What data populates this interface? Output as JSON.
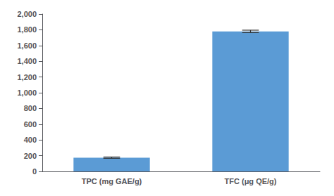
{
  "chart_data": {
    "type": "bar",
    "categories": [
      "TPC (mg GAE/g)",
      "TFC (μg QE/g)"
    ],
    "values": [
      175,
      1780
    ],
    "errors": [
      8,
      15
    ],
    "color": "#5b9bd5",
    "ylim": [
      0,
      2000
    ],
    "yticks": [
      0,
      200,
      400,
      600,
      800,
      1000,
      1200,
      1400,
      1600,
      1800,
      2000
    ],
    "grid": false
  }
}
